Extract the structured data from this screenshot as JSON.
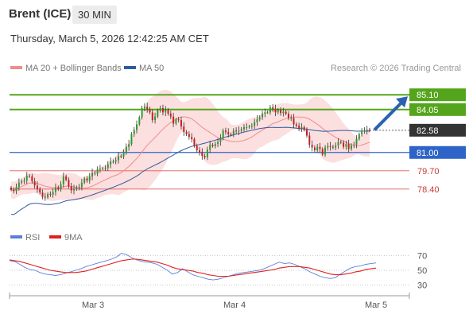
{
  "header": {
    "instrument": "Brent (ICE)",
    "timeframe": "30 MIN",
    "timestamp": "Thursday, March 5, 2026 12:42:25 AM CET"
  },
  "legend": {
    "items": [
      {
        "label": "MA 20 + Bollinger Bands",
        "color": "#f08c8c"
      },
      {
        "label": "MA 50",
        "color": "#2f5a9e"
      }
    ],
    "credit": "Research © 2026 Trading Central"
  },
  "rsi_legend": {
    "items": [
      {
        "label": "RSI",
        "color": "#5b7fd9"
      },
      {
        "label": "9MA",
        "color": "#e02020"
      }
    ]
  },
  "colors": {
    "resistance": "#55a51c",
    "support_main": "#2e64c8",
    "support_minor": "#e05a5a",
    "price_tag": "#333333",
    "bullish_candle": "#2e9a2e",
    "bearish_candle": "#c62020",
    "bollinger_fill": "#fbd4d4",
    "rsi_line": "#5b7fd9",
    "rsi_ma": "#e02020",
    "forecast_arrow": "#2a62b0"
  },
  "chart_data": [
    {
      "type": "candlestick",
      "title": "Brent (ICE) 30 MIN",
      "x_tick_labels": [
        "Mar 3",
        "Mar 4",
        "Mar 5"
      ],
      "ylim": [
        75.9,
        86.3
      ],
      "grid": false,
      "legend_position": "top-left",
      "levels": [
        {
          "value": 85.1,
          "label": "85.10",
          "kind": "resistance"
        },
        {
          "value": 84.05,
          "label": "84.05",
          "kind": "resistance"
        },
        {
          "value": 82.58,
          "label": "82.58",
          "kind": "last_price"
        },
        {
          "value": 81.0,
          "label": "81.00",
          "kind": "support"
        },
        {
          "value": 79.7,
          "label": "79.70",
          "kind": "support_minor"
        },
        {
          "value": 78.4,
          "label": "78.40",
          "kind": "support_minor"
        }
      ],
      "forecast_arrow": {
        "from": 82.6,
        "to": 85.1
      },
      "close": [
        78.35,
        78.25,
        78.55,
        78.85,
        78.95,
        79.0,
        79.35,
        79.3,
        78.95,
        78.65,
        78.4,
        78.15,
        77.85,
        77.8,
        78.05,
        78.0,
        78.2,
        78.5,
        78.4,
        78.75,
        79.3,
        79.05,
        78.6,
        78.3,
        78.4,
        78.5,
        78.55,
        78.85,
        79.15,
        79.0,
        79.3,
        79.55,
        79.5,
        79.8,
        79.85,
        79.85,
        79.9,
        80.15,
        80.35,
        80.35,
        80.45,
        80.75,
        80.7,
        81.05,
        81.4,
        81.6,
        82.3,
        82.6,
        83.0,
        83.5,
        84.15,
        84.25,
        84.1,
        83.85,
        83.3,
        83.55,
        84.0,
        84.15,
        83.85,
        84.0,
        83.75,
        83.55,
        83.05,
        83.35,
        83.3,
        82.85,
        82.45,
        82.3,
        82.1,
        81.95,
        81.45,
        81.15,
        81.0,
        80.75,
        80.65,
        81.2,
        81.55,
        81.45,
        81.6,
        81.75,
        82.0,
        82.55,
        82.45,
        82.3,
        82.25,
        82.55,
        82.5,
        82.55,
        82.65,
        82.8,
        82.8,
        82.85,
        82.9,
        83.15,
        83.35,
        83.5,
        83.75,
        83.85,
        83.85,
        84.2,
        84.1,
        83.85,
        84.0,
        83.8,
        83.9,
        83.75,
        83.45,
        83.45,
        83.0,
        82.9,
        82.7,
        82.8,
        82.6,
        82.2,
        81.55,
        81.35,
        81.15,
        81.4,
        81.25,
        80.85,
        81.35,
        81.45,
        81.4,
        81.35,
        81.5,
        81.75,
        81.7,
        81.4,
        81.6,
        81.25,
        81.5,
        81.55,
        81.95,
        82.3,
        82.55,
        82.55,
        82.6,
        82.58
      ]
    },
    {
      "type": "line",
      "title": "RSI",
      "ylim": [
        20,
        80
      ],
      "y_ticks": [
        70,
        50,
        30
      ],
      "series": [
        {
          "name": "RSI",
          "values": [
            63,
            62,
            58,
            54,
            51,
            50,
            47,
            45,
            44,
            43,
            44,
            46,
            48,
            50,
            52,
            55,
            57,
            59,
            61,
            63,
            65,
            68,
            73,
            71,
            67,
            64,
            62,
            61,
            60,
            58,
            54,
            50,
            45,
            47,
            52,
            48,
            44,
            42,
            40,
            38,
            37,
            38,
            40,
            42,
            44,
            46,
            47,
            48,
            49,
            50,
            52,
            55,
            58,
            61,
            59,
            60,
            58,
            55,
            52,
            48,
            45,
            42,
            40,
            39,
            40,
            45,
            49,
            53,
            55,
            56,
            58,
            59,
            60
          ]
        },
        {
          "name": "9MA",
          "values": [
            64,
            63,
            62,
            60,
            58,
            56,
            54,
            52,
            50,
            49,
            48,
            47,
            47,
            47,
            48,
            49,
            51,
            53,
            55,
            57,
            59,
            61,
            63,
            64,
            65,
            65,
            64,
            63,
            62,
            61,
            59,
            57,
            54,
            52,
            51,
            50,
            49,
            47,
            46,
            44,
            43,
            42,
            42,
            42,
            43,
            44,
            45,
            46,
            47,
            48,
            49,
            50,
            51,
            53,
            54,
            55,
            55,
            55,
            54,
            53,
            51,
            49,
            47,
            45,
            44,
            44,
            45,
            46,
            48,
            49,
            51,
            52,
            53
          ]
        }
      ]
    }
  ]
}
